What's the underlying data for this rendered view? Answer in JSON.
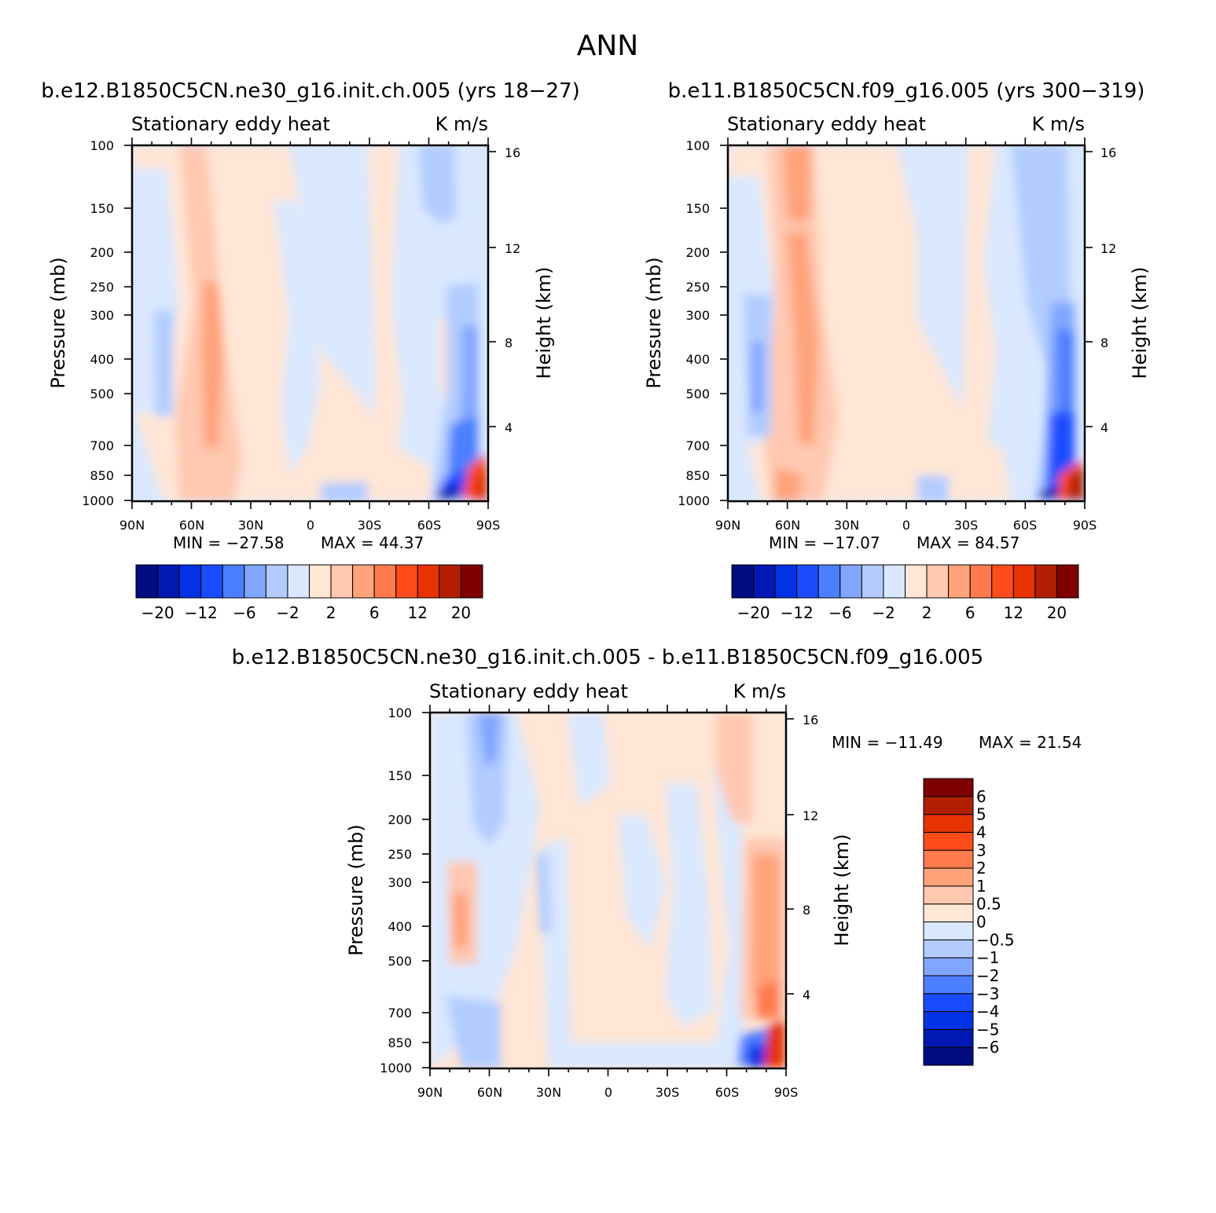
{
  "title": "ANN",
  "palette": [
    "#000c7f",
    "#0019b2",
    "#0033e6",
    "#1a4cff",
    "#4c7fff",
    "#80a6ff",
    "#b2ccff",
    "#d9e8ff",
    "#ffe6d5",
    "#ffc8b0",
    "#ffa37a",
    "#ff7a4c",
    "#ff4c1a",
    "#e63300",
    "#b21f00",
    "#7f0000"
  ],
  "common": {
    "subtitle_left": "Stationary eddy heat",
    "subtitle_right": "K m/s",
    "ylabel_left": "Pressure (mb)",
    "ylabel_right": "Height (km)",
    "pressure_ticks": [
      "100",
      "150",
      "200",
      "250",
      "300",
      "400",
      "500",
      "700",
      "850",
      "1000"
    ],
    "height_ticks": [
      "16",
      "12",
      "8",
      "4"
    ],
    "lat_ticks": [
      "90N",
      "60N",
      "30N",
      "0",
      "30S",
      "60S",
      "90S"
    ]
  },
  "chart_data": [
    {
      "type": "heatmap",
      "title": "b.e12.B1850C5CN.ne30_g16.init.ch.005 (yrs 18-27)",
      "min_label": "MIN = -27.58",
      "max_label": "MAX =  44.37",
      "stats": {
        "min": -27.58,
        "max": 44.37
      },
      "colorbar_levels": [
        -20,
        -16,
        -12,
        -8,
        -6,
        -4,
        -2,
        0,
        2,
        4,
        6,
        8,
        12,
        16,
        20
      ],
      "colorbar_labels": [
        "-20",
        "-12",
        "-6",
        "-2",
        "2",
        "6",
        "12",
        "20"
      ],
      "colorbar_orientation": "horizontal"
    },
    {
      "type": "heatmap",
      "title": "b.e11.B1850C5CN.f09_g16.005 (yrs 300-319)",
      "min_label": "MIN = -17.07",
      "max_label": "MAX =  84.57",
      "stats": {
        "min": -17.07,
        "max": 84.57
      },
      "colorbar_levels": [
        -20,
        -16,
        -12,
        -8,
        -6,
        -4,
        -2,
        0,
        2,
        4,
        6,
        8,
        12,
        16,
        20
      ],
      "colorbar_labels": [
        "-20",
        "-12",
        "-6",
        "-2",
        "2",
        "6",
        "12",
        "20"
      ],
      "colorbar_orientation": "horizontal"
    },
    {
      "type": "heatmap",
      "title": "b.e12.B1850C5CN.ne30_g16.init.ch.005 - b.e11.B1850C5CN.f09_g16.005",
      "min_label": "MIN = -11.49",
      "max_label": "MAX =  21.54",
      "stats": {
        "min": -11.49,
        "max": 21.54
      },
      "colorbar_levels": [
        -6,
        -5,
        -4,
        -3,
        -2,
        -1,
        -0.5,
        0,
        0.5,
        1,
        2,
        3,
        4,
        5,
        6
      ],
      "colorbar_labels": [
        "6",
        "5",
        "4",
        "3",
        "2",
        "1",
        "0.5",
        "0",
        "-0.5",
        "-1",
        "-2",
        "-3",
        "-4",
        "-5",
        "-6"
      ],
      "colorbar_orientation": "vertical"
    }
  ]
}
